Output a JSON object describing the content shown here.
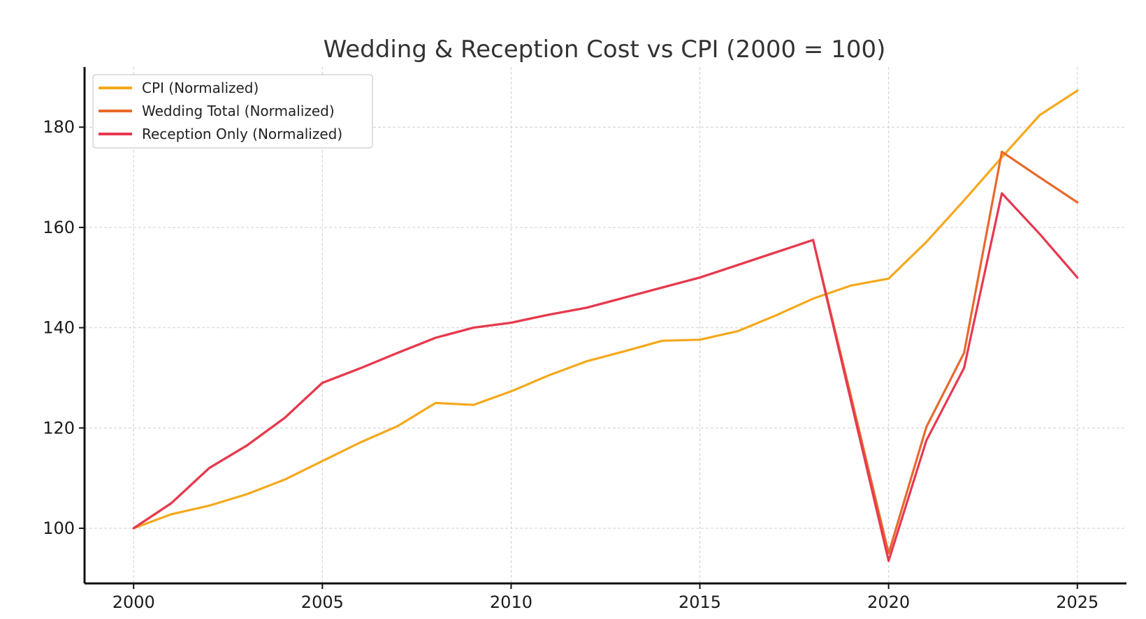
{
  "chart_data": {
    "type": "line",
    "title": "Wedding & Reception Cost vs CPI (2000 = 100)",
    "xlabel": "",
    "ylabel": "",
    "x": [
      2000,
      2001,
      2002,
      2003,
      2004,
      2005,
      2006,
      2007,
      2008,
      2009,
      2010,
      2011,
      2012,
      2013,
      2014,
      2015,
      2016,
      2017,
      2018,
      2019,
      2020,
      2021,
      2022,
      2023,
      2024,
      2025
    ],
    "xlim": [
      1998.7,
      2026.3
    ],
    "ylim": [
      89,
      192
    ],
    "xticks": [
      2000,
      2005,
      2010,
      2015,
      2020,
      2025
    ],
    "yticks": [
      100,
      120,
      140,
      160,
      180
    ],
    "grid": true,
    "legend_position": "top-left",
    "series": [
      {
        "name": "CPI (Normalized)",
        "color": "#F5A81C",
        "values": [
          100,
          102.8,
          104.5,
          106.8,
          109.7,
          113.4,
          117.1,
          120.4,
          125.0,
          124.6,
          127.3,
          130.5,
          133.3,
          135.3,
          137.4,
          137.6,
          139.3,
          142.4,
          145.8,
          148.4,
          149.8,
          157.1,
          165.4,
          174.0,
          182.4,
          187.3
        ]
      },
      {
        "name": "Wedding Total (Normalized)",
        "color": "#E8692C",
        "values": [
          100,
          105,
          112,
          116.5,
          122,
          129,
          131.9,
          135,
          138,
          140,
          141,
          142.6,
          144,
          146,
          148,
          150,
          152.5,
          155,
          157.5,
          126.4,
          95.0,
          120.2,
          135.0,
          175.1,
          170.0,
          165.0
        ]
      },
      {
        "name": "Reception Only (Normalized)",
        "color": "#E63950",
        "values": [
          100,
          105,
          112,
          116.5,
          122,
          129,
          131.9,
          135,
          138,
          140,
          141,
          142.6,
          144,
          146,
          148,
          150,
          152.5,
          155,
          157.5,
          125.5,
          93.5,
          117.5,
          132.0,
          166.8,
          158.7,
          150.0
        ]
      }
    ]
  }
}
